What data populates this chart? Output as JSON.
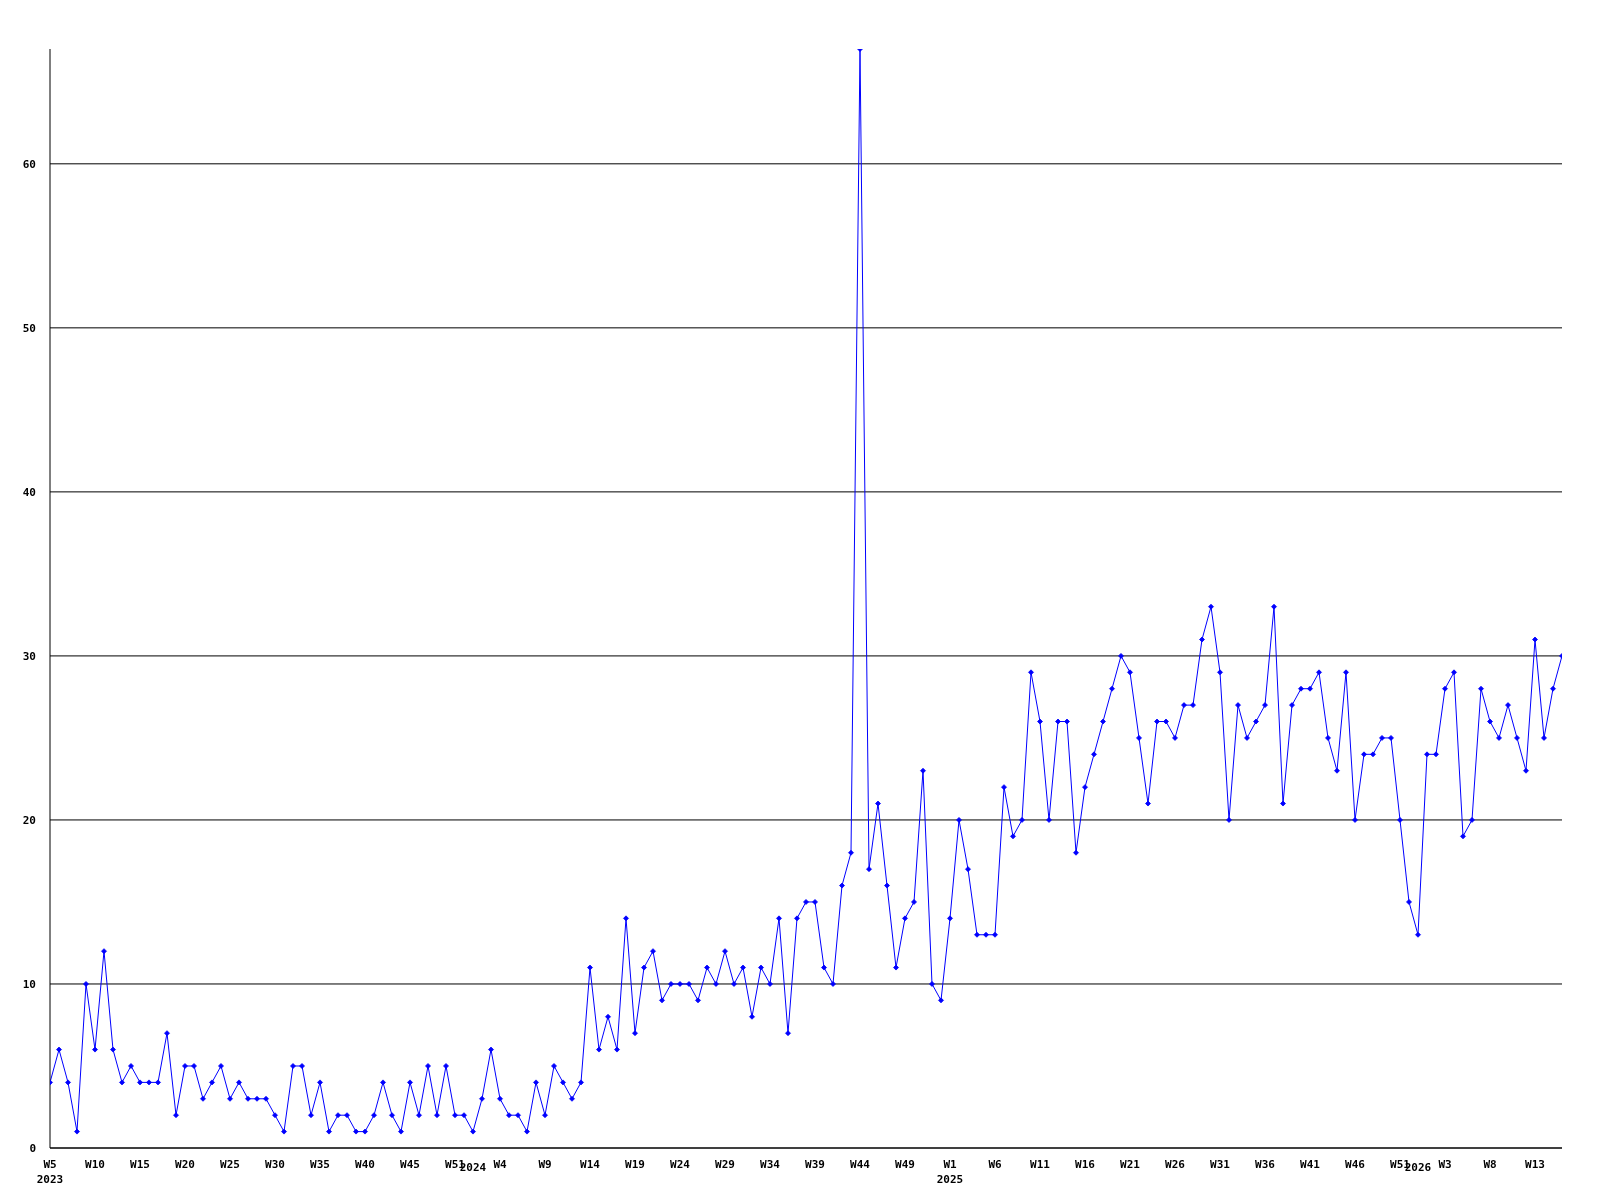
{
  "chart_data": {
    "type": "line",
    "categories": [
      "W5\n2023",
      null,
      null,
      null,
      null,
      "W10",
      null,
      null,
      null,
      null,
      "W15",
      null,
      null,
      null,
      null,
      "W20",
      null,
      null,
      null,
      null,
      "W25",
      null,
      null,
      null,
      null,
      "W30",
      null,
      null,
      null,
      null,
      "W35",
      null,
      null,
      null,
      null,
      "W40",
      null,
      null,
      null,
      null,
      "W45",
      null,
      null,
      null,
      null,
      "W51",
      null,
      "\n2024",
      null,
      null,
      "W4",
      null,
      null,
      null,
      null,
      "W9",
      null,
      null,
      null,
      null,
      "W14",
      null,
      null,
      null,
      null,
      "W19",
      null,
      null,
      null,
      null,
      "W24",
      null,
      null,
      null,
      null,
      "W29",
      null,
      null,
      null,
      null,
      "W34",
      null,
      null,
      null,
      null,
      "W39",
      null,
      null,
      null,
      null,
      "W44",
      null,
      null,
      null,
      null,
      "W49",
      null,
      null,
      null,
      null,
      "W1\n2025",
      null,
      null,
      null,
      null,
      "W6",
      null,
      null,
      null,
      null,
      "W11",
      null,
      null,
      null,
      null,
      "W16",
      null,
      null,
      null,
      null,
      "W21",
      null,
      null,
      null,
      null,
      "W26",
      null,
      null,
      null,
      null,
      "W31",
      null,
      null,
      null,
      null,
      "W36",
      null,
      null,
      null,
      null,
      "W41",
      null,
      null,
      null,
      null,
      "W46",
      null,
      null,
      null,
      null,
      "W51",
      null,
      "\n2026",
      null,
      null,
      "W3",
      null,
      null,
      null,
      null,
      "W8",
      null,
      null,
      null,
      null,
      "W13",
      null,
      null,
      null
    ],
    "series": [
      {
        "color": "#0000ff",
        "values": [
          4,
          6,
          4,
          1,
          10,
          6,
          12,
          6,
          4,
          5,
          4,
          4,
          4,
          7,
          2,
          5,
          5,
          3,
          4,
          5,
          3,
          4,
          3,
          3,
          3,
          2,
          1,
          5,
          5,
          2,
          4,
          1,
          2,
          2,
          1,
          1,
          2,
          4,
          2,
          1,
          4,
          2,
          5,
          2,
          5,
          2,
          2,
          1,
          3,
          6,
          3,
          2,
          2,
          1,
          4,
          2,
          5,
          4,
          3,
          4,
          11,
          6,
          8,
          6,
          14,
          7,
          11,
          12,
          9,
          10,
          10,
          10,
          9,
          11,
          10,
          12,
          10,
          11,
          8,
          11,
          10,
          14,
          7,
          14,
          15,
          15,
          11,
          10,
          16,
          18,
          67,
          17,
          21,
          16,
          11,
          14,
          15,
          23,
          10,
          9,
          14,
          20,
          17,
          13,
          13,
          13,
          22,
          19,
          20,
          29,
          26,
          20,
          26,
          26,
          18,
          22,
          24,
          26,
          28,
          30,
          29,
          25,
          21,
          26,
          26,
          25,
          27,
          27,
          31,
          33,
          29,
          20,
          27,
          25,
          26,
          27,
          33,
          21,
          27,
          28,
          28,
          29,
          25,
          23,
          29,
          20,
          24,
          24,
          25,
          25,
          20,
          15,
          13,
          24,
          24,
          28,
          29,
          19,
          20,
          28,
          26,
          25,
          27,
          25,
          23,
          31,
          25,
          28,
          30
        ]
      }
    ],
    "ylim": [
      0,
      67
    ],
    "yticks": [
      0,
      10,
      20,
      30,
      40,
      50,
      60
    ],
    "grid": "y",
    "marker": "diamond",
    "line_style": "solid"
  }
}
